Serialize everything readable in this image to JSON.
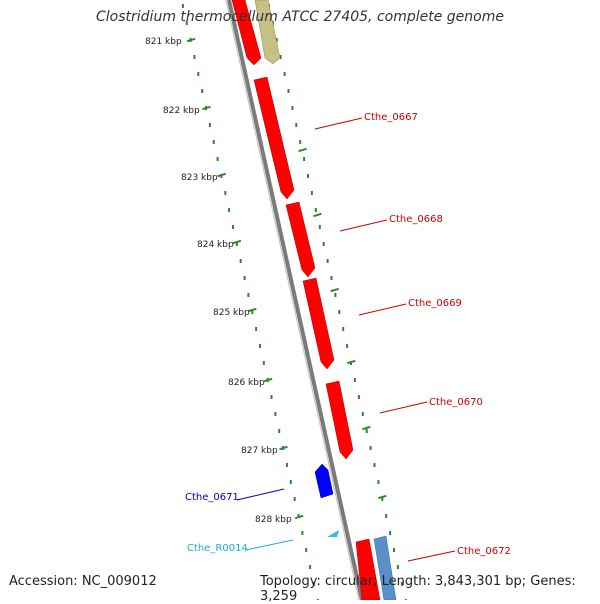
{
  "title": "Clostridium thermocellum ATCC 27405, complete genome",
  "footer": {
    "accession": "Accession: NC_009012",
    "summary": "Topology: circular; Length: 3,843,301 bp; Genes: 3,259"
  },
  "colors": {
    "forward_cds": "#ff0000",
    "reverse_cds": "#0000ff",
    "rna": "#33bbee",
    "other_feature": "#c8bf86",
    "other_feature_2": "#5a8fc8",
    "tick": "#2a8a2a",
    "backbone": "#8a8a8a"
  },
  "ruler": {
    "labels": [
      "821 kbp",
      "822 kbp",
      "823 kbp",
      "824 kbp",
      "825 kbp",
      "826 kbp",
      "827 kbp",
      "828 kbp"
    ]
  },
  "gene_labels": [
    {
      "text": "Cthe_0667",
      "color": "#cc0000"
    },
    {
      "text": "Cthe_0668",
      "color": "#cc0000"
    },
    {
      "text": "Cthe_0669",
      "color": "#cc0000"
    },
    {
      "text": "Cthe_0670",
      "color": "#cc0000"
    },
    {
      "text": "Cthe_0671",
      "color": "#0000cc"
    },
    {
      "text": "Cthe_R0014",
      "color": "#22aadd"
    },
    {
      "text": "Cthe_0672",
      "color": "#cc0000"
    }
  ]
}
